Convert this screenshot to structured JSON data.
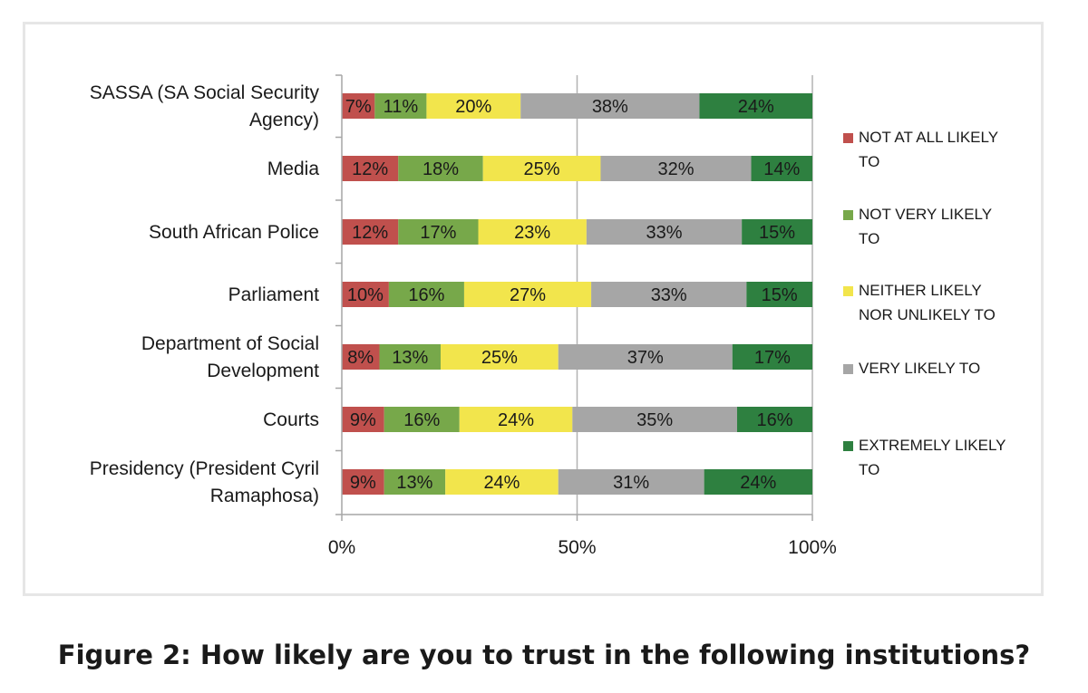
{
  "chart_data": {
    "type": "bar",
    "orientation": "horizontal",
    "stacked": true,
    "categories": [
      "SASSA (SA Social Security Agency)",
      "Media",
      "South African Police",
      "Parliament",
      "Department of Social Development",
      "Courts",
      "Presidency (President Cyril Ramaphosa)"
    ],
    "series": [
      {
        "name": "NOT AT ALL LIKELY TO",
        "color": "#c0504d",
        "values": [
          7,
          12,
          12,
          10,
          8,
          9,
          9
        ]
      },
      {
        "name": "NOT VERY LIKELY TO",
        "color": "#77a84a",
        "values": [
          11,
          18,
          17,
          16,
          13,
          16,
          13
        ]
      },
      {
        "name": "NEITHER LIKELY NOR UNLIKELY TO",
        "color": "#f2e54c",
        "values": [
          20,
          25,
          23,
          27,
          25,
          24,
          24
        ]
      },
      {
        "name": "VERY LIKELY TO",
        "color": "#a6a6a6",
        "values": [
          38,
          32,
          33,
          33,
          37,
          35,
          31
        ]
      },
      {
        "name": "EXTREMELY LIKELY TO",
        "color": "#2e8040",
        "values": [
          24,
          14,
          15,
          15,
          17,
          16,
          24
        ]
      }
    ],
    "data_labels": [
      [
        "7%",
        "11%",
        "20%",
        "38%",
        "24%"
      ],
      [
        "12%",
        "18%",
        "25%",
        "32%",
        "14%"
      ],
      [
        "12%",
        "17%",
        "23%",
        "33%",
        "15%"
      ],
      [
        "10%",
        "16%",
        "27%",
        "33%",
        "15%"
      ],
      [
        "8%",
        "13%",
        "25%",
        "37%",
        "17%"
      ],
      [
        "9%",
        "16%",
        "24%",
        "35%",
        "16%"
      ],
      [
        "9%",
        "13%",
        "24%",
        "31%",
        "24%"
      ]
    ],
    "x_ticks": [
      "0%",
      "50%",
      "100%"
    ],
    "xlim": [
      0,
      100
    ],
    "grid": "vertical at 50%",
    "legend_position": "right",
    "xlabel": "",
    "ylabel": ""
  },
  "caption": "Figure 2: How likely are you to trust in the following institutions?"
}
